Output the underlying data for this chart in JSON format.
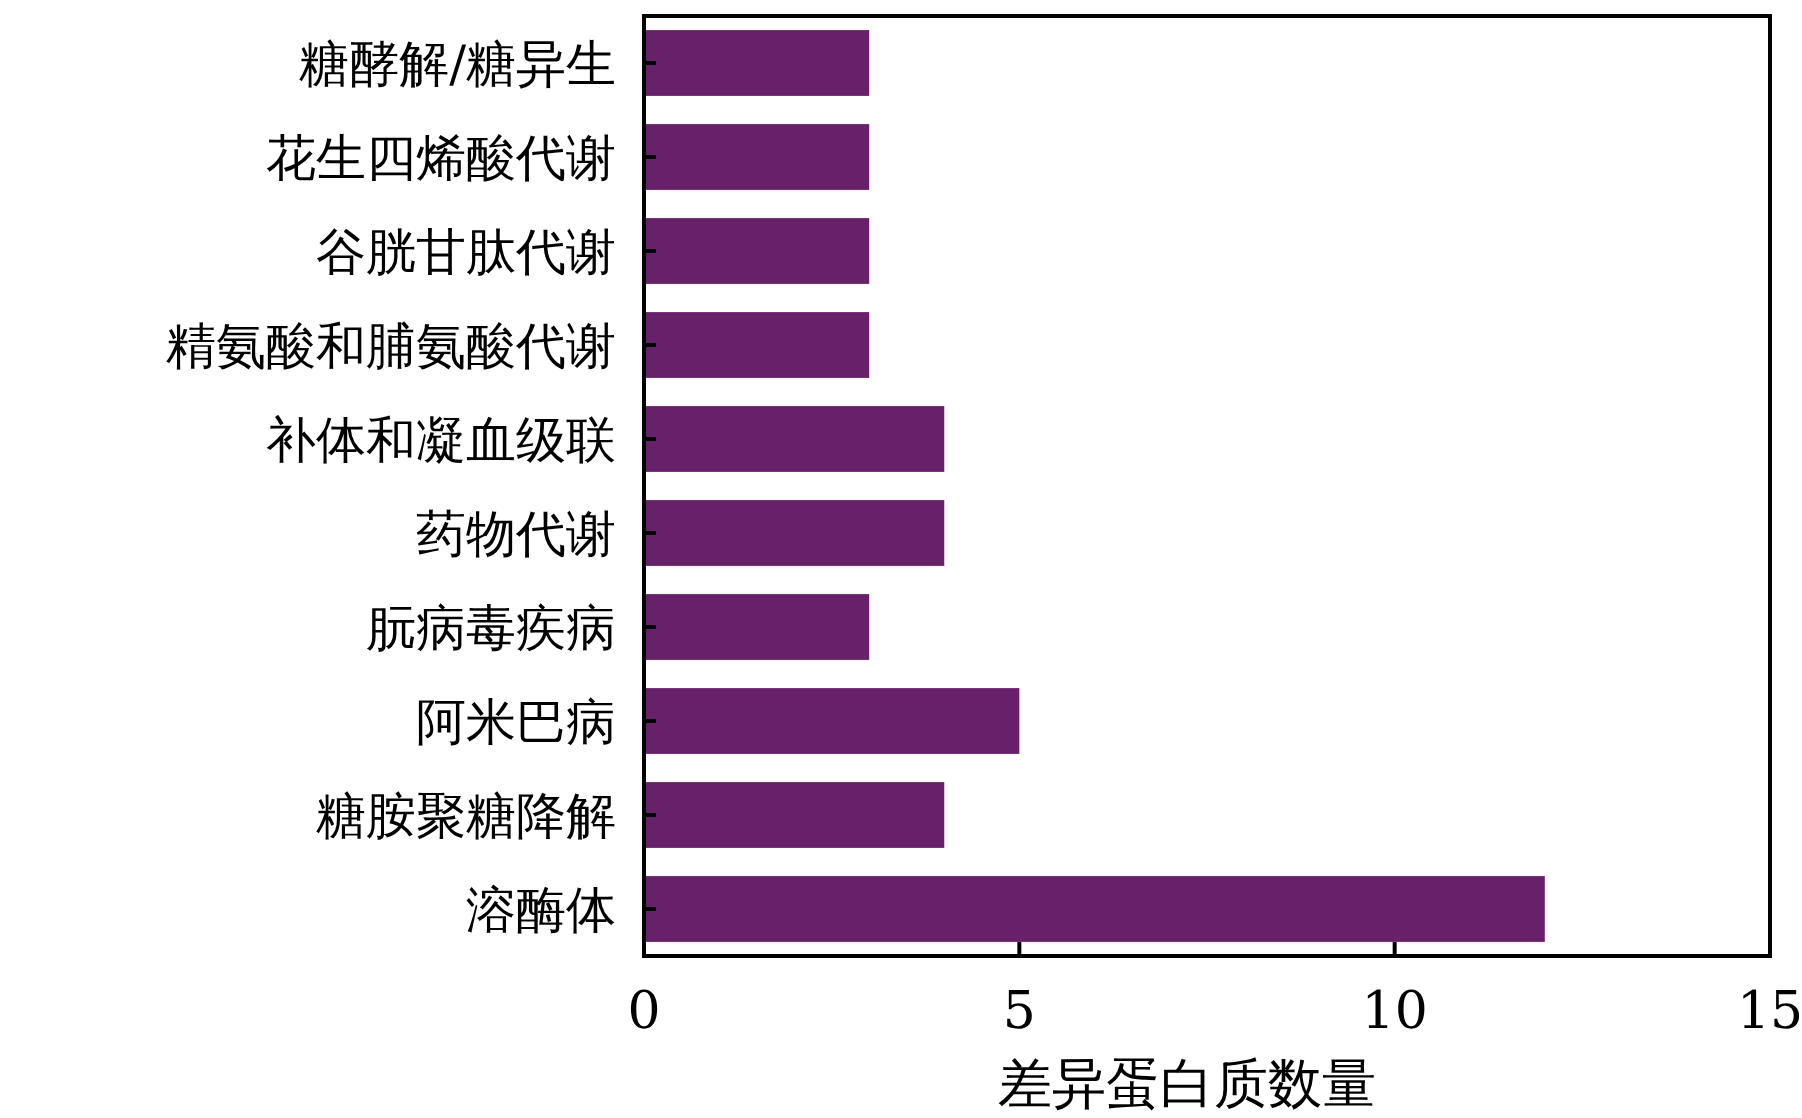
{
  "chart_data": {
    "type": "bar",
    "orientation": "horizontal",
    "xlabel": "差异蛋白质数量",
    "categories": [
      "糖酵解/糖异生",
      "花生四烯酸代谢",
      "谷胱甘肽代谢",
      "精氨酸和脯氨酸代谢",
      "补体和凝血级联",
      "药物代谢",
      "朊病毒疾病",
      "阿米巴病",
      "糖胺聚糖降解",
      "溶酶体"
    ],
    "values": [
      3,
      3,
      3,
      3,
      4,
      4,
      3,
      5,
      4,
      12
    ],
    "color": "#68206a",
    "xlim": [
      0,
      15
    ],
    "xticks": [
      0,
      5,
      10,
      15
    ],
    "grid": false
  }
}
